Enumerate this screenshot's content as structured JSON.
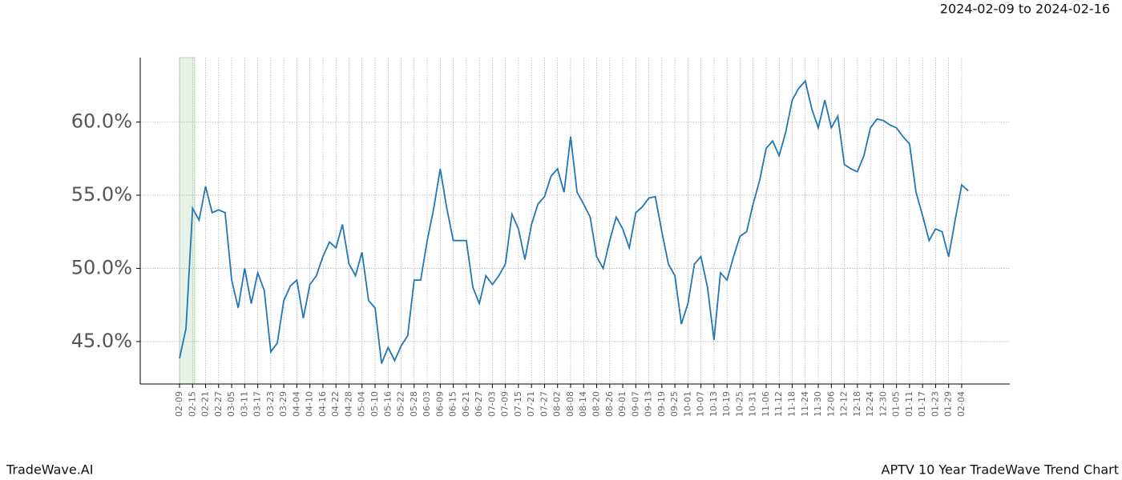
{
  "chart_data": {
    "type": "line",
    "subtitle": "2024-02-09 to 2024-02-16",
    "footer_left": "TradeWave.AI",
    "footer_right": "APTV 10 Year TradeWave Trend Chart",
    "categories": [
      "02-09",
      null,
      "02-15",
      null,
      "02-21",
      null,
      "02-27",
      null,
      "03-05",
      null,
      "03-11",
      null,
      "03-17",
      null,
      "03-23",
      null,
      "03-29",
      null,
      "04-04",
      null,
      "04-10",
      null,
      "04-16",
      null,
      "04-22",
      null,
      "04-28",
      null,
      "05-04",
      null,
      "05-10",
      null,
      "05-16",
      null,
      "05-22",
      null,
      "05-28",
      null,
      "06-03",
      null,
      "06-09",
      null,
      "06-15",
      null,
      "06-21",
      null,
      "06-27",
      null,
      "07-03",
      null,
      "07-09",
      null,
      "07-15",
      null,
      "07-21",
      null,
      "07-27",
      null,
      "08-02",
      null,
      "08-08",
      null,
      "08-14",
      null,
      "08-20",
      null,
      "08-26",
      null,
      "09-01",
      null,
      "09-07",
      null,
      "09-13",
      null,
      "09-19",
      null,
      "09-25",
      null,
      "10-01",
      null,
      "10-07",
      null,
      "10-13",
      null,
      "10-19",
      null,
      "10-25",
      null,
      "10-31",
      null,
      "11-06",
      null,
      "11-12",
      null,
      "11-18",
      null,
      "11-24",
      null,
      "11-30",
      null,
      "12-06",
      null,
      "12-12",
      null,
      "12-18",
      null,
      "12-24",
      null,
      "12-30",
      null,
      "01-05",
      null,
      "01-11",
      null,
      "01-17",
      null,
      "01-23",
      null,
      "01-29",
      null,
      "02-04",
      null
    ],
    "series": [
      {
        "color": "#1f77b4",
        "values": [
          43.85,
          45.9,
          54.1,
          53.3,
          55.6,
          53.8,
          54.0,
          53.8,
          49.2,
          47.3,
          50.0,
          47.6,
          49.7,
          48.5,
          44.3,
          44.9,
          47.8,
          48.8,
          49.2,
          46.6,
          48.9,
          49.5,
          50.8,
          51.8,
          51.4,
          53.0,
          50.3,
          49.5,
          51.1,
          47.8,
          47.3,
          43.5,
          44.6,
          43.7,
          44.7,
          45.4,
          49.2,
          49.2,
          51.9,
          54.1,
          56.8,
          54.1,
          51.9,
          51.9,
          51.9,
          48.7,
          47.6,
          49.5,
          48.9,
          49.5,
          50.3,
          53.7,
          52.7,
          50.6,
          53.0,
          54.4,
          54.9,
          56.3,
          56.8,
          55.2,
          59.0,
          55.2,
          54.4,
          53.5,
          50.8,
          50.0,
          51.9,
          53.5,
          52.7,
          51.4,
          53.8,
          54.2,
          54.8,
          54.9,
          52.5,
          50.3,
          49.5,
          46.2,
          47.6,
          50.3,
          50.8,
          48.7,
          45.1,
          49.7,
          49.2,
          50.8,
          52.2,
          52.5,
          54.4,
          56.0,
          58.2,
          58.7,
          57.7,
          59.3,
          61.5,
          62.3,
          62.8,
          60.9,
          59.6,
          61.5,
          59.6,
          60.4,
          57.1,
          56.8,
          56.6,
          57.7,
          59.6,
          60.2,
          60.1,
          59.8,
          59.6,
          59.0,
          58.5,
          55.2,
          53.6,
          51.9,
          52.7,
          52.5,
          50.8,
          53.3,
          55.7,
          55.3
        ]
      }
    ],
    "highlight_span": [
      0,
      2.33
    ],
    "highlight_color": "#e6f2e6",
    "ylim": [
      42.1,
      64.4
    ],
    "yticks": [
      {
        "value": 45,
        "label": "45.0%"
      },
      {
        "value": 50,
        "label": "50.0%"
      },
      {
        "value": 55,
        "label": "55.0%"
      },
      {
        "value": 60,
        "label": "60.0%"
      }
    ],
    "grid": true
  }
}
